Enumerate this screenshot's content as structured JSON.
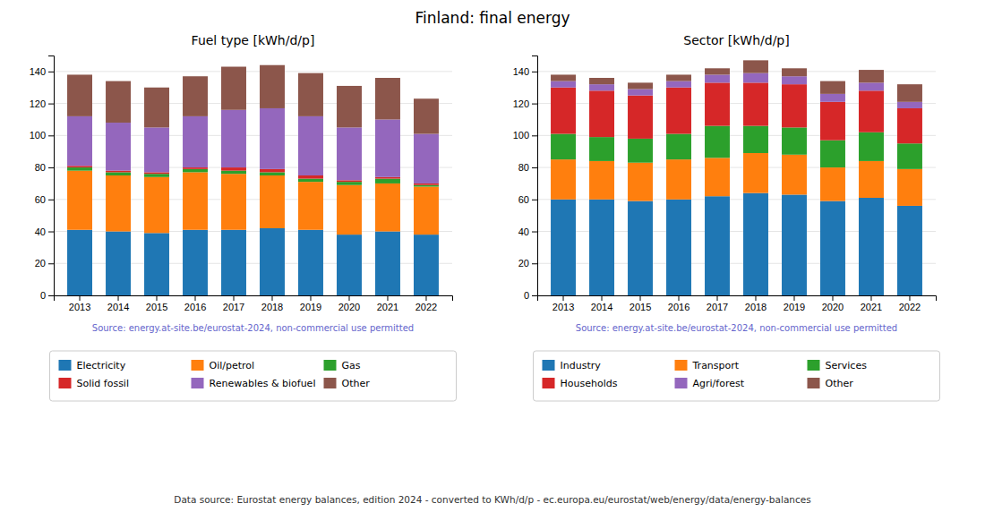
{
  "title": "Finland: final energy",
  "annotations": [
    "Data source: Eurostat energy balances, edition 2024 - converted to KWh/d/p - ec.europa.eu/eurostat/web/energy/data/energy-balances"
  ],
  "chart_data": [
    {
      "type": "bar",
      "title": "Fuel type [kWh/d/p]",
      "stacked": true,
      "grid": true,
      "legend": "bottom",
      "annotations": [
        "Source: energy.at-site.be/eurostat-2024, non-commercial use permitted"
      ],
      "categories": [
        "2013",
        "2014",
        "2015",
        "2016",
        "2017",
        "2018",
        "2019",
        "2020",
        "2021",
        "2022"
      ],
      "ylim": [
        0,
        150
      ],
      "yticks": [
        0,
        20,
        40,
        60,
        80,
        100,
        120,
        140
      ],
      "series": [
        {
          "name": "Electricity",
          "color": "#1f77b4",
          "values": [
            41,
            40,
            39,
            41,
            41,
            42,
            41,
            38,
            40,
            38
          ]
        },
        {
          "name": "Oil/petrol",
          "color": "#ff7f0e",
          "values": [
            37,
            35,
            35,
            36,
            35,
            33,
            30,
            31,
            30,
            30
          ]
        },
        {
          "name": "Gas",
          "color": "#2ca02c",
          "values": [
            2,
            2,
            2,
            2,
            2,
            2,
            2,
            2,
            3,
            1
          ]
        },
        {
          "name": "Solid fossil",
          "color": "#d62728",
          "values": [
            1,
            1,
            1,
            1,
            2,
            2,
            2,
            1,
            1,
            1
          ]
        },
        {
          "name": "Renewables & biofuel",
          "color": "#9467bd",
          "values": [
            31,
            30,
            28,
            32,
            36,
            38,
            37,
            33,
            36,
            31
          ]
        },
        {
          "name": "Other",
          "color": "#8c564b",
          "values": [
            26,
            26,
            25,
            25,
            27,
            27,
            27,
            26,
            26,
            22
          ]
        }
      ]
    },
    {
      "type": "bar",
      "title": "Sector [kWh/d/p]",
      "stacked": true,
      "grid": true,
      "legend": "bottom",
      "annotations": [
        "Source: energy.at-site.be/eurostat-2024, non-commercial use permitted"
      ],
      "categories": [
        "2013",
        "2014",
        "2015",
        "2016",
        "2017",
        "2018",
        "2019",
        "2020",
        "2021",
        "2022"
      ],
      "ylim": [
        0,
        150
      ],
      "yticks": [
        0,
        20,
        40,
        60,
        80,
        100,
        120,
        140
      ],
      "series": [
        {
          "name": "Industry",
          "color": "#1f77b4",
          "values": [
            60,
            60,
            59,
            60,
            62,
            64,
            63,
            59,
            61,
            56
          ]
        },
        {
          "name": "Transport",
          "color": "#ff7f0e",
          "values": [
            25,
            24,
            24,
            25,
            24,
            25,
            25,
            21,
            23,
            23
          ]
        },
        {
          "name": "Services",
          "color": "#2ca02c",
          "values": [
            16,
            15,
            15,
            16,
            20,
            17,
            17,
            17,
            18,
            16
          ]
        },
        {
          "name": "Households",
          "color": "#d62728",
          "values": [
            29,
            29,
            27,
            29,
            27,
            27,
            27,
            24,
            26,
            22
          ]
        },
        {
          "name": "Agri/forest",
          "color": "#9467bd",
          "values": [
            4,
            4,
            4,
            4,
            5,
            6,
            5,
            5,
            5,
            4
          ]
        },
        {
          "name": "Other",
          "color": "#8c564b",
          "values": [
            4,
            4,
            4,
            4,
            4,
            8,
            5,
            8,
            8,
            11
          ]
        }
      ]
    }
  ]
}
